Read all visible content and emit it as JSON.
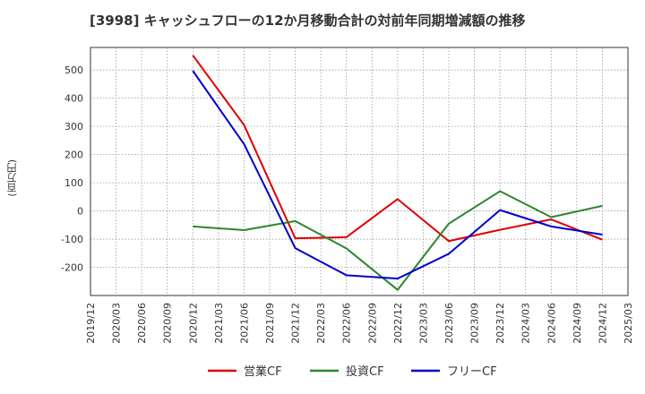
{
  "chart_data": {
    "type": "line",
    "title": "[3998]  キャッシュフローの12か月移動合計の対前年同期増減額の推移",
    "ylabel": "(百万円)",
    "xlabel": "",
    "ylim": [
      -300,
      580
    ],
    "yticks": [
      500,
      400,
      300,
      200,
      100,
      0,
      -100,
      -200
    ],
    "categories": [
      "2019/12",
      "2020/03",
      "2020/06",
      "2020/09",
      "2020/12",
      "2021/03",
      "2021/06",
      "2021/09",
      "2021/12",
      "2022/03",
      "2022/06",
      "2022/09",
      "2022/12",
      "2023/03",
      "2023/06",
      "2023/09",
      "2023/12",
      "2024/03",
      "2024/06",
      "2024/09",
      "2024/12",
      "2025/03"
    ],
    "legend_position": "bottom",
    "grid": true,
    "series": [
      {
        "name": "営業CF",
        "color": "#dd0000",
        "points": [
          [
            "2020/12",
            552
          ],
          [
            "2021/06",
            305
          ],
          [
            "2021/12",
            -97
          ],
          [
            "2022/06",
            -93
          ],
          [
            "2022/12",
            42
          ],
          [
            "2023/06",
            -107
          ],
          [
            "2023/12",
            -67
          ],
          [
            "2024/06",
            -30
          ],
          [
            "2024/12",
            -102
          ]
        ]
      },
      {
        "name": "投資CF",
        "color": "#2d862d",
        "points": [
          [
            "2020/12",
            -55
          ],
          [
            "2021/06",
            -68
          ],
          [
            "2021/12",
            -36
          ],
          [
            "2022/06",
            -133
          ],
          [
            "2022/12",
            -280
          ],
          [
            "2023/06",
            -45
          ],
          [
            "2023/12",
            70
          ],
          [
            "2024/06",
            -22
          ],
          [
            "2024/12",
            18
          ]
        ]
      },
      {
        "name": "フリーCF",
        "color": "#0000cc",
        "points": [
          [
            "2020/12",
            497
          ],
          [
            "2021/06",
            237
          ],
          [
            "2021/12",
            -132
          ],
          [
            "2022/06",
            -228
          ],
          [
            "2022/12",
            -240
          ],
          [
            "2023/06",
            -152
          ],
          [
            "2023/12",
            3
          ],
          [
            "2024/06",
            -55
          ],
          [
            "2024/12",
            -84
          ]
        ]
      }
    ]
  }
}
